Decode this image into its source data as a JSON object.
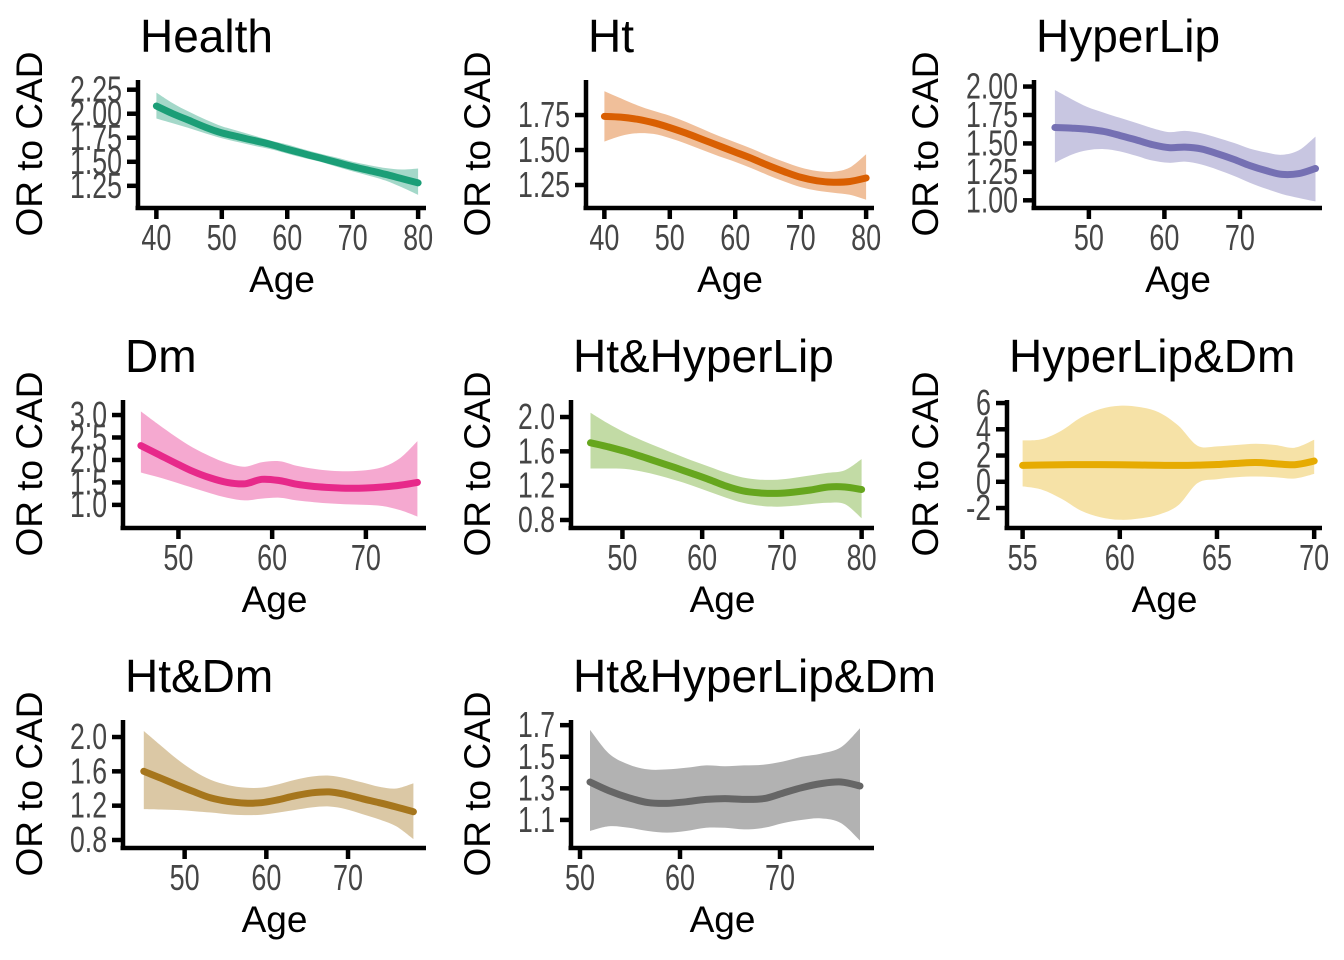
{
  "figure": {
    "background": "#ffffff",
    "axis_color": "#000000",
    "tick_label_color": "#454545"
  },
  "chart_data": [
    {
      "type": "line",
      "title": "Health",
      "xlabel": "Age",
      "ylabel": "OR to CAD",
      "line_color": "#1B9E77",
      "band_opacity": 0.4,
      "xlim": [
        37.5,
        80.9
      ],
      "ylim": [
        1.04,
        2.33
      ],
      "xticks": [
        40,
        50,
        60,
        70,
        80
      ],
      "yticks": [
        2.25,
        2.0,
        1.75,
        1.5,
        1.25
      ],
      "ytick_labels": [
        "2.25",
        "2.00",
        "1.75",
        "1.50",
        "1.25"
      ],
      "x": [
        40,
        42.5,
        45,
        47.5,
        50,
        52.5,
        55,
        57.5,
        60,
        62.5,
        65,
        67.5,
        70,
        72.5,
        75,
        77.5,
        80
      ],
      "y": [
        2.08,
        2.0,
        1.93,
        1.86,
        1.8,
        1.76,
        1.72,
        1.68,
        1.63,
        1.585,
        1.54,
        1.495,
        1.45,
        1.41,
        1.37,
        1.325,
        1.28
      ],
      "y_upper": [
        2.22,
        2.11,
        2.02,
        1.94,
        1.87,
        1.82,
        1.77,
        1.72,
        1.68,
        1.63,
        1.585,
        1.545,
        1.5,
        1.465,
        1.435,
        1.42,
        1.43
      ],
      "y_lower": [
        1.95,
        1.9,
        1.85,
        1.795,
        1.745,
        1.705,
        1.665,
        1.63,
        1.585,
        1.54,
        1.5,
        1.45,
        1.4,
        1.355,
        1.305,
        1.235,
        1.155
      ]
    },
    {
      "type": "line",
      "title": "Ht",
      "xlabel": "Age",
      "ylabel": "OR to CAD",
      "line_color": "#D95F02",
      "band_opacity": 0.4,
      "xlim": [
        37.5,
        80.9
      ],
      "ylim": [
        1.1,
        1.986
      ],
      "xticks": [
        40,
        50,
        60,
        70,
        80
      ],
      "yticks": [
        1.75,
        1.5,
        1.25
      ],
      "ytick_labels": [
        "1.75",
        "1.50",
        "1.25"
      ],
      "x": [
        40,
        42.5,
        45,
        47.5,
        50,
        52.5,
        55,
        57.5,
        60,
        62.5,
        65,
        67.5,
        70,
        72.5,
        75,
        77.5,
        80
      ],
      "y": [
        1.74,
        1.735,
        1.72,
        1.695,
        1.66,
        1.62,
        1.575,
        1.53,
        1.485,
        1.44,
        1.39,
        1.345,
        1.305,
        1.28,
        1.27,
        1.275,
        1.3
      ],
      "y_upper": [
        1.92,
        1.87,
        1.82,
        1.78,
        1.745,
        1.7,
        1.65,
        1.6,
        1.555,
        1.51,
        1.46,
        1.415,
        1.375,
        1.35,
        1.345,
        1.375,
        1.47
      ],
      "y_lower": [
        1.56,
        1.6,
        1.62,
        1.615,
        1.585,
        1.545,
        1.5,
        1.455,
        1.415,
        1.37,
        1.32,
        1.275,
        1.235,
        1.21,
        1.195,
        1.18,
        1.145
      ]
    },
    {
      "type": "line",
      "title": "HyperLip",
      "xlabel": "Age",
      "ylabel": "OR to CAD",
      "line_color": "#7570B3",
      "band_opacity": 0.4,
      "xlim": [
        43.0,
        80.6
      ],
      "ylim": [
        0.95,
        2.04
      ],
      "xticks": [
        50,
        60,
        70
      ],
      "yticks": [
        2.0,
        1.75,
        1.5,
        1.25,
        1.0
      ],
      "ytick_labels": [
        "2.00",
        "1.75",
        "1.50",
        "1.25",
        "1.00"
      ],
      "x": [
        45.5,
        47.7,
        49.8,
        52,
        54.1,
        56.3,
        58.4,
        60.6,
        62.7,
        64.9,
        67,
        69.2,
        71.3,
        73.5,
        75.6,
        77.8,
        80
      ],
      "y": [
        1.64,
        1.635,
        1.625,
        1.605,
        1.57,
        1.53,
        1.49,
        1.463,
        1.468,
        1.452,
        1.41,
        1.36,
        1.305,
        1.26,
        1.228,
        1.235,
        1.28
      ],
      "y_upper": [
        1.97,
        1.89,
        1.82,
        1.77,
        1.725,
        1.68,
        1.635,
        1.6,
        1.61,
        1.59,
        1.55,
        1.505,
        1.455,
        1.42,
        1.4,
        1.44,
        1.56
      ],
      "y_lower": [
        1.33,
        1.4,
        1.44,
        1.45,
        1.43,
        1.39,
        1.35,
        1.33,
        1.34,
        1.315,
        1.27,
        1.215,
        1.155,
        1.1,
        1.055,
        1.02,
        0.99
      ]
    },
    {
      "type": "line",
      "title": "Dm",
      "xlabel": "Age",
      "ylabel": "OR to CAD",
      "line_color": "#E7298A",
      "band_opacity": 0.4,
      "xlim": [
        44.3,
        76.2
      ],
      "ylim": [
        0.53,
        3.29
      ],
      "xticks": [
        50,
        60,
        70
      ],
      "yticks": [
        3.0,
        2.5,
        2.0,
        1.5,
        1.0
      ],
      "ytick_labels": [
        "3.0",
        "2.5",
        "2.0",
        "1.5",
        "1.0"
      ],
      "x": [
        46,
        47.8,
        49.7,
        51.5,
        53.4,
        55.2,
        57.1,
        58.9,
        60.8,
        62.6,
        64.5,
        66.3,
        68.2,
        70,
        71.9,
        73.7,
        75.5
      ],
      "y": [
        2.32,
        2.13,
        1.93,
        1.75,
        1.6,
        1.5,
        1.47,
        1.57,
        1.54,
        1.46,
        1.41,
        1.385,
        1.37,
        1.375,
        1.4,
        1.44,
        1.5
      ],
      "y_upper": [
        3.08,
        2.8,
        2.52,
        2.28,
        2.08,
        1.93,
        1.85,
        1.95,
        1.97,
        1.87,
        1.8,
        1.76,
        1.75,
        1.77,
        1.85,
        2.05,
        2.42
      ],
      "y_lower": [
        1.72,
        1.62,
        1.5,
        1.38,
        1.26,
        1.16,
        1.1,
        1.14,
        1.16,
        1.1,
        1.06,
        1.03,
        1.01,
        1.0,
        0.97,
        0.88,
        0.74
      ]
    },
    {
      "type": "line",
      "title": "Ht&HyperLip",
      "xlabel": "Age",
      "ylabel": "OR to CAD",
      "line_color": "#66A61E",
      "band_opacity": 0.4,
      "xlim": [
        43.8,
        81.3
      ],
      "ylim": [
        0.73,
        2.175
      ],
      "xticks": [
        50,
        60,
        70,
        80
      ],
      "yticks": [
        2.0,
        1.6,
        1.2,
        0.8
      ],
      "ytick_labels": [
        "2.0",
        "1.6",
        "1.2",
        "0.8"
      ],
      "x": [
        46,
        48.1,
        50.3,
        52.4,
        54.5,
        56.6,
        58.8,
        60.9,
        63,
        65.1,
        67.3,
        69.4,
        71.5,
        73.6,
        75.8,
        77.9,
        80
      ],
      "y": [
        1.7,
        1.655,
        1.6,
        1.54,
        1.475,
        1.41,
        1.34,
        1.27,
        1.195,
        1.14,
        1.115,
        1.11,
        1.125,
        1.15,
        1.185,
        1.185,
        1.155
      ],
      "y_upper": [
        2.05,
        1.93,
        1.82,
        1.73,
        1.65,
        1.57,
        1.49,
        1.42,
        1.35,
        1.295,
        1.27,
        1.27,
        1.29,
        1.32,
        1.35,
        1.38,
        1.51
      ],
      "y_lower": [
        1.4,
        1.4,
        1.395,
        1.365,
        1.32,
        1.265,
        1.2,
        1.13,
        1.06,
        1.0,
        0.965,
        0.955,
        0.965,
        0.985,
        1.0,
        0.985,
        0.82
      ]
    },
    {
      "type": "line",
      "title": "HyperLip&Dm",
      "xlabel": "Age",
      "ylabel": "OR to CAD",
      "line_color": "#E6AB02",
      "band_opacity": 0.35,
      "xlim": [
        54.3,
        70.3
      ],
      "ylim": [
        -3.37,
        6.08
      ],
      "xticks": [
        55,
        60,
        65,
        70
      ],
      "yticks": [
        6,
        4,
        2,
        0,
        -2
      ],
      "ytick_labels": [
        "6",
        "4",
        "2",
        "0",
        "-2"
      ],
      "x": [
        55,
        56,
        57,
        58,
        59,
        60,
        61,
        62,
        63,
        64,
        65,
        66,
        67,
        68,
        69,
        70
      ],
      "y": [
        1.25,
        1.28,
        1.3,
        1.31,
        1.31,
        1.3,
        1.28,
        1.26,
        1.25,
        1.27,
        1.32,
        1.4,
        1.47,
        1.38,
        1.3,
        1.58
      ],
      "y_upper": [
        3.15,
        3.25,
        3.9,
        4.9,
        5.55,
        5.8,
        5.7,
        5.3,
        4.3,
        2.75,
        2.7,
        2.8,
        2.9,
        2.8,
        2.6,
        3.2
      ],
      "y_lower": [
        -0.35,
        -0.6,
        -1.3,
        -2.2,
        -2.7,
        -2.9,
        -2.8,
        -2.5,
        -1.8,
        -0.1,
        0.2,
        0.35,
        0.4,
        0.35,
        0.25,
        0.6
      ]
    },
    {
      "type": "line",
      "title": "Ht&Dm",
      "xlabel": "Age",
      "ylabel": "OR to CAD",
      "line_color": "#A6761D",
      "band_opacity": 0.4,
      "xlim": [
        42.7,
        79.3
      ],
      "ylim": [
        0.73,
        2.175
      ],
      "xticks": [
        50,
        60,
        70
      ],
      "yticks": [
        2.0,
        1.6,
        1.2,
        0.8
      ],
      "ytick_labels": [
        "2.0",
        "1.6",
        "1.2",
        "0.8"
      ],
      "x": [
        45,
        47.1,
        49.1,
        51.2,
        53.2,
        55.3,
        57.4,
        59.4,
        61.5,
        63.5,
        65.6,
        67.7,
        69.7,
        71.8,
        73.8,
        75.9,
        78
      ],
      "y": [
        1.6,
        1.52,
        1.44,
        1.36,
        1.29,
        1.25,
        1.23,
        1.235,
        1.27,
        1.315,
        1.35,
        1.36,
        1.33,
        1.28,
        1.235,
        1.185,
        1.13
      ],
      "y_upper": [
        2.07,
        1.9,
        1.74,
        1.6,
        1.5,
        1.44,
        1.41,
        1.41,
        1.45,
        1.5,
        1.54,
        1.55,
        1.52,
        1.47,
        1.42,
        1.4,
        1.46
      ],
      "y_lower": [
        1.16,
        1.155,
        1.15,
        1.135,
        1.12,
        1.1,
        1.09,
        1.095,
        1.12,
        1.15,
        1.18,
        1.19,
        1.16,
        1.1,
        1.04,
        0.96,
        0.81
      ]
    },
    {
      "type": "line",
      "title": "Ht&HyperLip&Dm",
      "xlabel": "Age",
      "ylabel": "OR to CAD",
      "line_color": "#666666",
      "band_opacity": 0.5,
      "xlim": [
        49.3,
        79.2
      ],
      "ylim": [
        0.935,
        1.72
      ],
      "xticks": [
        50,
        60,
        70
      ],
      "yticks": [
        1.7,
        1.5,
        1.3,
        1.1
      ],
      "ytick_labels": [
        "1.7",
        "1.5",
        "1.3",
        "1.1"
      ],
      "x": [
        51,
        52.9,
        54.9,
        56.8,
        58.7,
        60.6,
        62.6,
        64.5,
        66.4,
        68.4,
        70.3,
        72.2,
        74.1,
        76.1,
        78
      ],
      "y": [
        1.34,
        1.285,
        1.24,
        1.21,
        1.205,
        1.215,
        1.23,
        1.235,
        1.23,
        1.235,
        1.27,
        1.305,
        1.33,
        1.34,
        1.315
      ],
      "y_upper": [
        1.67,
        1.52,
        1.45,
        1.42,
        1.42,
        1.43,
        1.445,
        1.44,
        1.445,
        1.45,
        1.47,
        1.5,
        1.52,
        1.56,
        1.68
      ],
      "y_lower": [
        1.03,
        1.06,
        1.05,
        1.03,
        1.02,
        1.03,
        1.05,
        1.05,
        1.04,
        1.05,
        1.08,
        1.1,
        1.11,
        1.08,
        0.97
      ]
    }
  ]
}
